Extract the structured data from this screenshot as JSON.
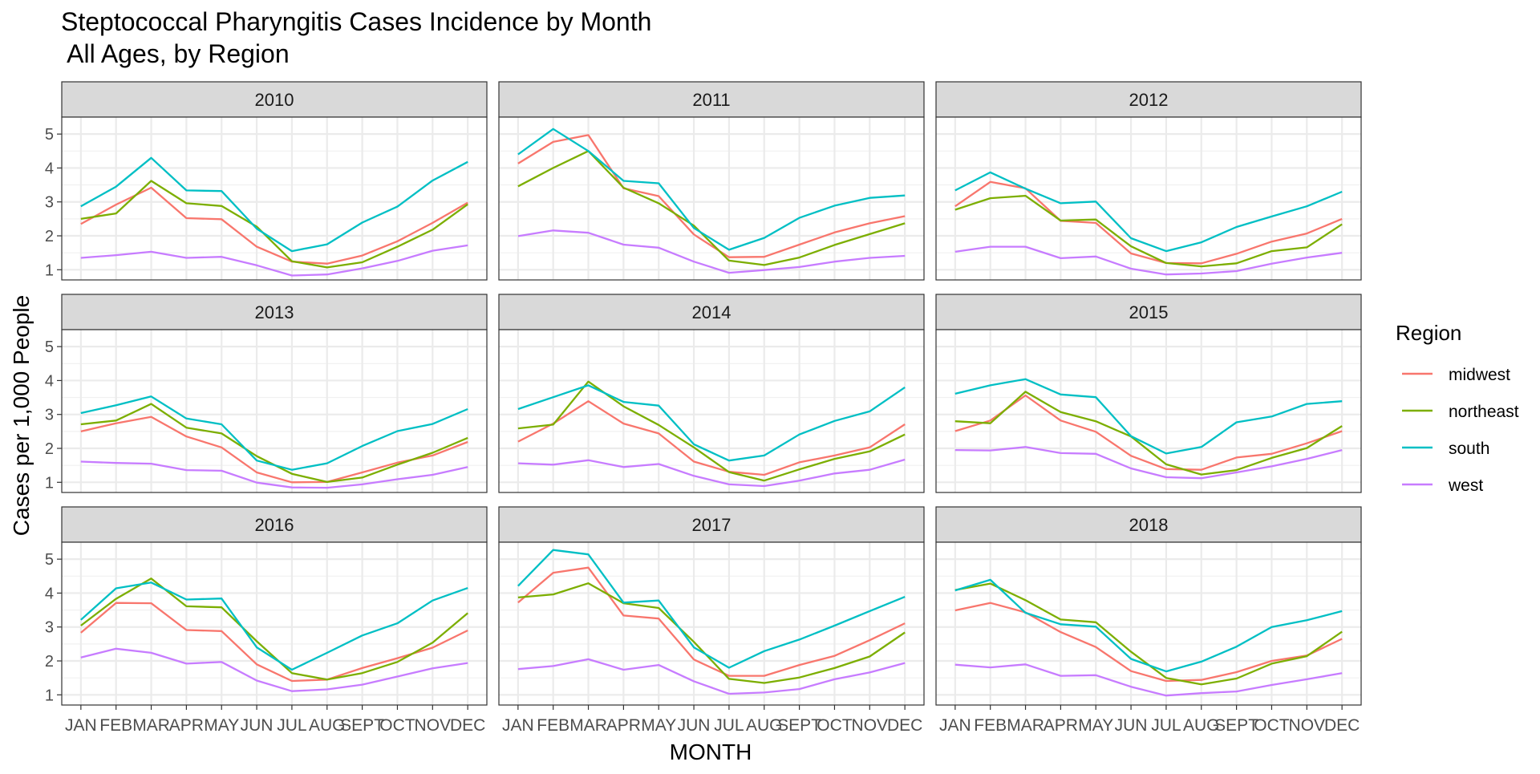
{
  "chart_data": {
    "type": "line",
    "title": "Steptococcal Pharyngitis Cases Incidence by Month",
    "subtitle": " All Ages, by Region",
    "xlabel": "MONTH",
    "ylabel": "Cases per 1,000 People",
    "categories": [
      "JAN",
      "FEB",
      "MAR",
      "APR",
      "MAY",
      "JUN",
      "JUL",
      "AUG",
      "SEPT",
      "OCT",
      "NOV",
      "DEC"
    ],
    "yticks": [
      1,
      2,
      3,
      4,
      5
    ],
    "ylim": [
      0.7,
      5.5
    ],
    "grid": true,
    "legend": {
      "title": "Region",
      "position": "right",
      "entries": [
        "midwest",
        "northeast",
        "south",
        "west"
      ]
    },
    "colors": {
      "midwest": "#F8766D",
      "northeast": "#7CAE00",
      "south": "#00BFC4",
      "west": "#C77CFF"
    },
    "panels": [
      {
        "label": "2010",
        "series": [
          {
            "name": "midwest",
            "values": [
              2.35,
              2.92,
              3.42,
              2.52,
              2.49,
              1.68,
              1.24,
              1.18,
              1.42,
              1.84,
              2.38,
              2.98
            ]
          },
          {
            "name": "northeast",
            "values": [
              2.5,
              2.66,
              3.62,
              2.96,
              2.88,
              2.27,
              1.25,
              1.07,
              1.22,
              1.68,
              2.18,
              2.93
            ]
          },
          {
            "name": "south",
            "values": [
              2.87,
              3.45,
              4.3,
              3.34,
              3.32,
              2.21,
              1.55,
              1.75,
              2.39,
              2.86,
              3.63,
              4.18
            ]
          },
          {
            "name": "west",
            "values": [
              1.35,
              1.43,
              1.53,
              1.35,
              1.38,
              1.13,
              0.83,
              0.86,
              1.04,
              1.26,
              1.56,
              1.72
            ]
          }
        ]
      },
      {
        "label": "2011",
        "series": [
          {
            "name": "midwest",
            "values": [
              4.13,
              4.77,
              4.97,
              3.4,
              3.17,
              2.04,
              1.37,
              1.38,
              1.74,
              2.1,
              2.37,
              2.58
            ]
          },
          {
            "name": "northeast",
            "values": [
              3.46,
              4.0,
              4.5,
              3.42,
              2.96,
              2.3,
              1.27,
              1.14,
              1.36,
              1.73,
              2.05,
              2.37
            ]
          },
          {
            "name": "south",
            "values": [
              4.4,
              5.15,
              4.5,
              3.62,
              3.55,
              2.23,
              1.59,
              1.94,
              2.53,
              2.89,
              3.12,
              3.19
            ]
          },
          {
            "name": "west",
            "values": [
              1.99,
              2.16,
              2.09,
              1.74,
              1.65,
              1.24,
              0.91,
              0.99,
              1.08,
              1.24,
              1.35,
              1.41
            ]
          }
        ]
      },
      {
        "label": "2012",
        "series": [
          {
            "name": "midwest",
            "values": [
              2.87,
              3.59,
              3.4,
              2.44,
              2.38,
              1.48,
              1.2,
              1.19,
              1.47,
              1.83,
              2.07,
              2.5
            ]
          },
          {
            "name": "northeast",
            "values": [
              2.77,
              3.11,
              3.18,
              2.45,
              2.48,
              1.69,
              1.2,
              1.1,
              1.19,
              1.55,
              1.66,
              2.34
            ]
          },
          {
            "name": "south",
            "values": [
              3.34,
              3.87,
              3.39,
              2.96,
              3.01,
              1.93,
              1.55,
              1.81,
              2.26,
              2.57,
              2.87,
              3.3
            ]
          },
          {
            "name": "west",
            "values": [
              1.53,
              1.68,
              1.68,
              1.34,
              1.39,
              1.03,
              0.86,
              0.89,
              0.96,
              1.18,
              1.36,
              1.5
            ]
          }
        ]
      },
      {
        "label": "2013",
        "series": [
          {
            "name": "midwest",
            "values": [
              2.5,
              2.74,
              2.93,
              2.35,
              2.03,
              1.29,
              1.0,
              1.01,
              1.29,
              1.58,
              1.79,
              2.19
            ]
          },
          {
            "name": "northeast",
            "values": [
              2.71,
              2.82,
              3.31,
              2.61,
              2.44,
              1.77,
              1.25,
              1.01,
              1.14,
              1.52,
              1.87,
              2.31
            ]
          },
          {
            "name": "south",
            "values": [
              3.04,
              3.27,
              3.53,
              2.88,
              2.71,
              1.64,
              1.37,
              1.56,
              2.07,
              2.51,
              2.72,
              3.16
            ]
          },
          {
            "name": "west",
            "values": [
              1.61,
              1.57,
              1.55,
              1.36,
              1.34,
              0.99,
              0.85,
              0.84,
              0.94,
              1.09,
              1.22,
              1.45
            ]
          }
        ]
      },
      {
        "label": "2014",
        "series": [
          {
            "name": "midwest",
            "values": [
              2.2,
              2.73,
              3.39,
              2.73,
              2.44,
              1.61,
              1.31,
              1.22,
              1.59,
              1.79,
              2.03,
              2.71
            ]
          },
          {
            "name": "northeast",
            "values": [
              2.59,
              2.7,
              3.97,
              3.24,
              2.69,
              2.03,
              1.3,
              1.05,
              1.38,
              1.69,
              1.91,
              2.41
            ]
          },
          {
            "name": "south",
            "values": [
              3.16,
              3.51,
              3.86,
              3.37,
              3.26,
              2.12,
              1.64,
              1.79,
              2.41,
              2.81,
              3.09,
              3.8
            ]
          },
          {
            "name": "west",
            "values": [
              1.56,
              1.52,
              1.65,
              1.45,
              1.54,
              1.19,
              0.94,
              0.89,
              1.05,
              1.26,
              1.37,
              1.67
            ]
          }
        ]
      },
      {
        "label": "2015",
        "series": [
          {
            "name": "midwest",
            "values": [
              2.51,
              2.82,
              3.56,
              2.82,
              2.49,
              1.78,
              1.39,
              1.37,
              1.73,
              1.84,
              2.15,
              2.51
            ]
          },
          {
            "name": "northeast",
            "values": [
              2.8,
              2.74,
              3.67,
              3.07,
              2.8,
              2.35,
              1.53,
              1.23,
              1.36,
              1.72,
              2.01,
              2.66
            ]
          },
          {
            "name": "south",
            "values": [
              3.61,
              3.86,
              4.04,
              3.59,
              3.51,
              2.36,
              1.85,
              2.04,
              2.77,
              2.94,
              3.31,
              3.39
            ]
          },
          {
            "name": "west",
            "values": [
              1.95,
              1.94,
              2.04,
              1.86,
              1.84,
              1.41,
              1.15,
              1.12,
              1.29,
              1.47,
              1.69,
              1.95
            ]
          }
        ]
      },
      {
        "label": "2016",
        "series": [
          {
            "name": "midwest",
            "values": [
              2.83,
              3.71,
              3.7,
              2.91,
              2.88,
              1.9,
              1.41,
              1.45,
              1.79,
              2.08,
              2.39,
              2.9
            ]
          },
          {
            "name": "northeast",
            "values": [
              3.04,
              3.83,
              4.43,
              3.61,
              3.58,
              2.58,
              1.64,
              1.45,
              1.64,
              1.97,
              2.54,
              3.41
            ]
          },
          {
            "name": "south",
            "values": [
              3.21,
              4.14,
              4.31,
              3.81,
              3.84,
              2.4,
              1.74,
              2.24,
              2.75,
              3.11,
              3.78,
              4.15
            ]
          },
          {
            "name": "west",
            "values": [
              2.1,
              2.36,
              2.24,
              1.92,
              1.97,
              1.42,
              1.11,
              1.16,
              1.3,
              1.54,
              1.78,
              1.94
            ]
          }
        ]
      },
      {
        "label": "2017",
        "series": [
          {
            "name": "midwest",
            "values": [
              3.72,
              4.6,
              4.75,
              3.34,
              3.25,
              2.04,
              1.56,
              1.56,
              1.88,
              2.15,
              2.61,
              3.11
            ]
          },
          {
            "name": "northeast",
            "values": [
              3.87,
              3.96,
              4.29,
              3.7,
              3.56,
              2.56,
              1.47,
              1.35,
              1.51,
              1.79,
              2.13,
              2.84
            ]
          },
          {
            "name": "south",
            "values": [
              4.21,
              5.27,
              5.14,
              3.72,
              3.78,
              2.4,
              1.8,
              2.29,
              2.63,
              3.04,
              3.47,
              3.89
            ]
          },
          {
            "name": "west",
            "values": [
              1.76,
              1.85,
              2.05,
              1.74,
              1.88,
              1.4,
              1.03,
              1.07,
              1.17,
              1.46,
              1.66,
              1.94
            ]
          }
        ]
      },
      {
        "label": "2018",
        "series": [
          {
            "name": "midwest",
            "values": [
              3.49,
              3.71,
              3.43,
              2.85,
              2.41,
              1.7,
              1.41,
              1.44,
              1.67,
              2.0,
              2.16,
              2.65
            ]
          },
          {
            "name": "northeast",
            "values": [
              4.09,
              4.28,
              3.79,
              3.22,
              3.14,
              2.27,
              1.5,
              1.31,
              1.48,
              1.92,
              2.14,
              2.86
            ]
          },
          {
            "name": "south",
            "values": [
              4.08,
              4.39,
              3.42,
              3.08,
              3.01,
              2.06,
              1.69,
              1.98,
              2.42,
              3.0,
              3.2,
              3.47
            ]
          },
          {
            "name": "west",
            "values": [
              1.89,
              1.81,
              1.9,
              1.56,
              1.58,
              1.24,
              0.98,
              1.05,
              1.1,
              1.29,
              1.46,
              1.64
            ]
          }
        ]
      }
    ]
  }
}
